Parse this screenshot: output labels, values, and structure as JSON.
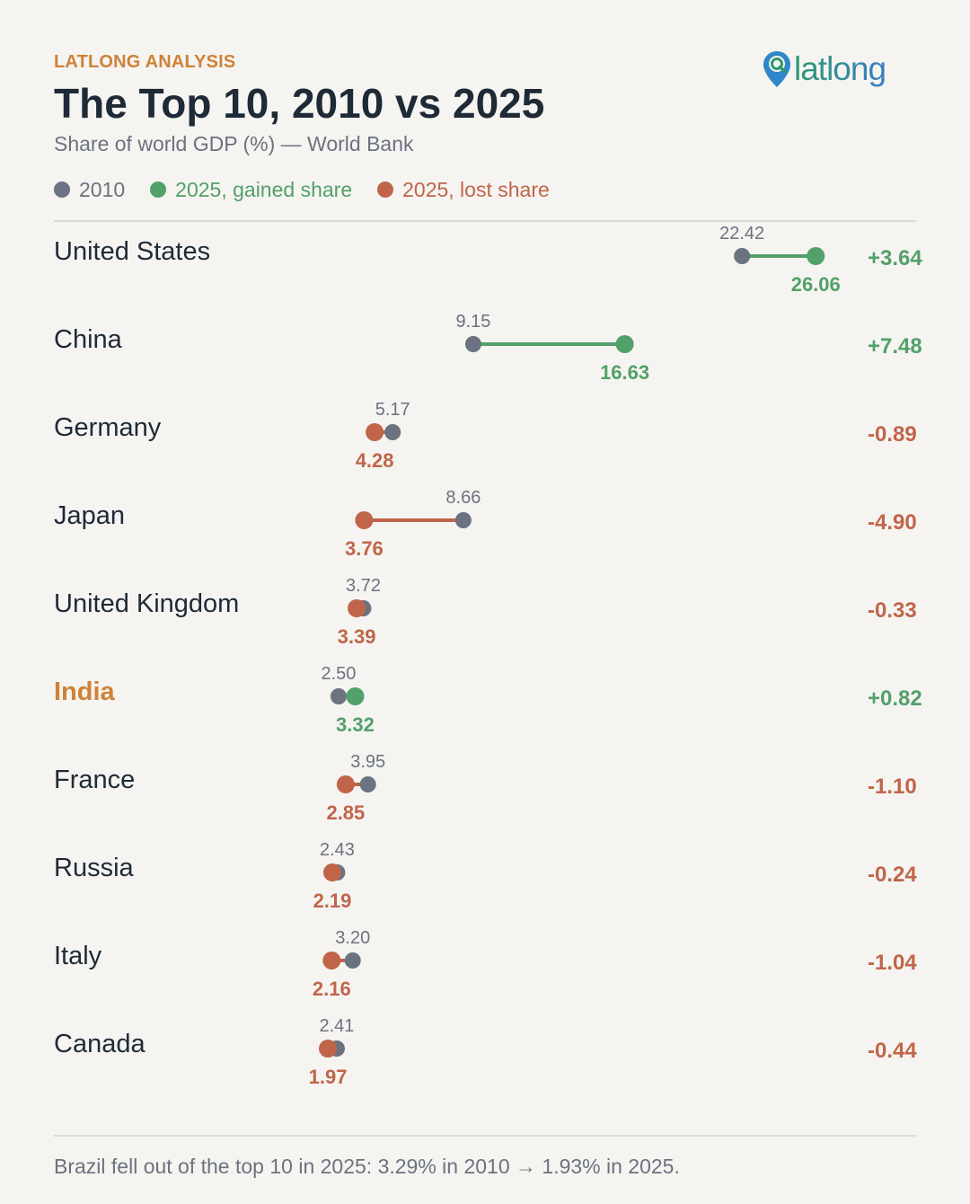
{
  "header": {
    "kicker": "LATLONG ANALYSIS",
    "title": "The Top 10, 2010 vs 2025",
    "subtitle": "Share of world GDP (%) — World Bank"
  },
  "brand": {
    "logo_text": "latlong",
    "logo_icon": "map-pin-search-icon",
    "logo_colors": {
      "pin": "#2f86c9",
      "text_start": "#2e9a6f",
      "text_end": "#3b7fc4"
    }
  },
  "legend": [
    {
      "label": "2010",
      "color": "#6b7280",
      "text_color": "#6b7280"
    },
    {
      "label": "2025, gained share",
      "color": "#52a06a",
      "text_color": "#52a06a"
    },
    {
      "label": "2025, lost share",
      "color": "#c0654a",
      "text_color": "#c0654a"
    }
  ],
  "colors": {
    "y2010": "#6b7280",
    "gain": "#52a06a",
    "loss": "#c0654a",
    "highlight": "#d08137",
    "country": "#1f2a37"
  },
  "chart_data": {
    "type": "dumbbell",
    "unit": "Share of world GDP (%)",
    "series_names": [
      "2010",
      "2025"
    ],
    "rows": [
      {
        "country": "United States",
        "v2010": 22.42,
        "v2025": 26.06,
        "change": "+3.64",
        "label2010": "22.42",
        "label2025": "26.06"
      },
      {
        "country": "China",
        "v2010": 9.15,
        "v2025": 16.63,
        "change": "+7.48",
        "label2010": "9.15",
        "label2025": "16.63"
      },
      {
        "country": "Germany",
        "v2010": 5.17,
        "v2025": 4.28,
        "change": "-0.89",
        "label2010": "5.17",
        "label2025": "4.28"
      },
      {
        "country": "Japan",
        "v2010": 8.66,
        "v2025": 3.76,
        "change": "-4.90",
        "label2010": "8.66",
        "label2025": "3.76"
      },
      {
        "country": "United Kingdom",
        "v2010": 3.72,
        "v2025": 3.39,
        "change": "-0.33",
        "label2010": "3.72",
        "label2025": "3.39"
      },
      {
        "country": "India",
        "v2010": 2.5,
        "v2025": 3.32,
        "change": "+0.82",
        "label2010": "2.50",
        "label2025": "3.32",
        "highlight": true
      },
      {
        "country": "France",
        "v2010": 3.95,
        "v2025": 2.85,
        "change": "-1.10",
        "label2010": "3.95",
        "label2025": "2.85"
      },
      {
        "country": "Russia",
        "v2010": 2.43,
        "v2025": 2.19,
        "change": "-0.24",
        "label2010": "2.43",
        "label2025": "2.19"
      },
      {
        "country": "Italy",
        "v2010": 3.2,
        "v2025": 2.16,
        "change": "-1.04",
        "label2010": "3.20",
        "label2025": "2.16"
      },
      {
        "country": "Canada",
        "v2010": 2.41,
        "v2025": 1.97,
        "change": "-0.44",
        "label2010": "2.41",
        "label2025": "1.97"
      }
    ]
  },
  "footer": {
    "note": "Brazil fell out of the top 10 in 2025: 3.29% in 2010 → 1.93% in 2025."
  }
}
